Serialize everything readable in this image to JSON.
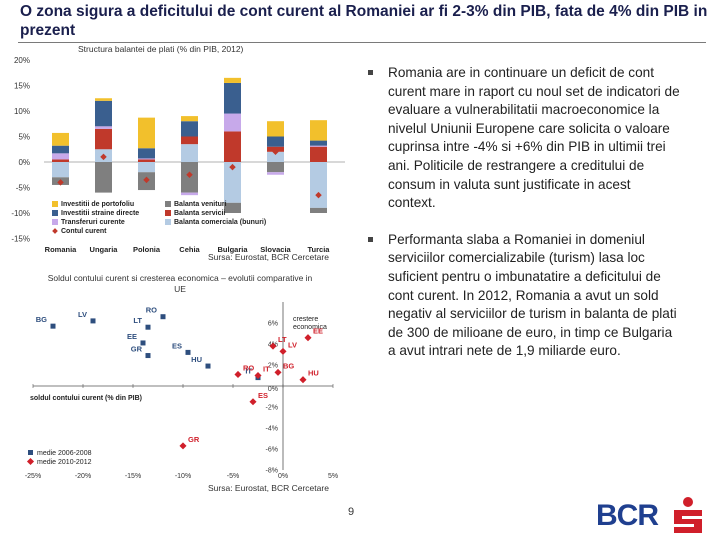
{
  "slide_title": "O zona sigura a deficitului de cont curent al Romaniei ar fi 2-3% din PIB, fata de 4% din PIB in prezent",
  "bullets": [
    "Romania are in continuare un deficit de cont curent mare in raport cu noul set de indicatori de evaluare a vulnerabilitatii macroeconomice la nivelul Uniunii Europene care solicita o valoare cuprinsa intre -4% si +6% din PIB in ultimii trei ani. Politicile de restrangere a creditului de consum in valuta sunt justificate in acest context.",
    "Performanta slaba a Romaniei in domeniul serviciilor comercializabile (turism) lasa loc suficient pentru o imbunatatire a deficitului de cont curent. In 2012, Romania a avut un sold negativ al serviciilor de turism in balanta de plati de 300 de milioane de euro, in timp ce Bulgaria a avut intrari nete de 1,9 miliarde euro."
  ],
  "page_number": "9",
  "logo_text": "BCR",
  "chart_data": [
    {
      "type": "bar",
      "stacked": true,
      "title": "Structura balantei de plati  (% din PIB, 2012)",
      "source": "Sursa: Eurostat, BCR Cercetare",
      "categories": [
        "Romania",
        "Ungaria",
        "Polonia",
        "Cehia",
        "Bulgaria",
        "Slovacia",
        "Turcia"
      ],
      "yticks": [
        "20%",
        "15%",
        "10%",
        "5%",
        "0%",
        "-5%",
        "-10%",
        "-15%"
      ],
      "ylim": [
        -15,
        20
      ],
      "series": [
        {
          "name": "Balanta comerciala (bunuri)",
          "color": "#b4cbe3",
          "values": [
            -3,
            2.5,
            -2,
            3.5,
            -8,
            2,
            -9
          ]
        },
        {
          "name": "Balanta servicii",
          "color": "#c0392b",
          "values": [
            0.5,
            4,
            0.5,
            1.5,
            6,
            1,
            3
          ]
        },
        {
          "name": "Balanta venituri",
          "color": "#7f7f7f",
          "values": [
            -1.5,
            -6,
            -3.5,
            -6,
            -2,
            -2,
            -1
          ]
        },
        {
          "name": "Transferuri curente",
          "color": "#c7a9ea",
          "values": [
            1.2,
            0.5,
            0.2,
            -0.5,
            3.5,
            -0.5,
            0.2
          ]
        },
        {
          "name": "Investitii straine directe",
          "color": "#3a5f8f",
          "values": [
            1.5,
            5,
            2,
            3,
            6,
            2,
            1
          ]
        },
        {
          "name": "Investitii de portofoliu",
          "color": "#f2c02c",
          "values": [
            2.5,
            0.5,
            6,
            1,
            1,
            3,
            4
          ]
        }
      ],
      "contul_curent": {
        "name": "Contul curent",
        "color": "#c0392b",
        "values": [
          -4,
          1,
          -3.5,
          -2.5,
          -1,
          2,
          -6.5
        ]
      },
      "legend": [
        "Investitii de portofoliu",
        "Investitii straine directe",
        "Transferuri curente",
        "Balanta venituri",
        "Balanta servicii",
        "Balanta comerciala (bunuri)",
        "Contul curent"
      ]
    },
    {
      "type": "scatter",
      "title": "Soldul contului curent si cresterea economica – evolutii comparative in UE",
      "source": "Sursa: Eurostat, BCR Cercetare",
      "xlabel": "soldul contului curent (% din PIB)",
      "ylabel": "crestere economica",
      "xlim": [
        -25,
        5
      ],
      "ylim": [
        -8,
        8
      ],
      "xticks": [
        -25,
        -20,
        -15,
        -10,
        -5,
        0,
        5
      ],
      "xtick_labels": [
        "-25%",
        "-20%",
        "-15%",
        "-10%",
        "-5%",
        "0%",
        "5%"
      ],
      "yticks": [
        6,
        4,
        2,
        0,
        -2,
        -4,
        -6,
        -8
      ],
      "ytick_labels": [
        "6%",
        "4%",
        "2%",
        "0%",
        "-2%",
        "-4%",
        "-6%",
        "-8%"
      ],
      "series": [
        {
          "name": "medie 2006-2008",
          "marker": "square",
          "color": "#2e4e7e",
          "points": [
            {
              "label": "BG",
              "x": -23,
              "y": 5.7
            },
            {
              "label": "LV",
              "x": -19,
              "y": 6.2
            },
            {
              "label": "RO",
              "x": -12,
              "y": 6.6
            },
            {
              "label": "LT",
              "x": -13.5,
              "y": 5.6
            },
            {
              "label": "EE",
              "x": -14,
              "y": 4.1
            },
            {
              "label": "GR",
              "x": -13.5,
              "y": 2.9
            },
            {
              "label": "ES",
              "x": -9.5,
              "y": 3.2
            },
            {
              "label": "HU",
              "x": -7.5,
              "y": 1.9
            },
            {
              "label": "IT",
              "x": -2.5,
              "y": 0.8
            }
          ]
        },
        {
          "name": "medie 2010-2012",
          "marker": "diamond",
          "color": "#d01f2a",
          "points": [
            {
              "label": "EE",
              "x": 2.5,
              "y": 4.6
            },
            {
              "label": "LT",
              "x": -1,
              "y": 3.8
            },
            {
              "label": "LV",
              "x": 0,
              "y": 3.3
            },
            {
              "label": "BG",
              "x": -0.5,
              "y": 1.3
            },
            {
              "label": "HU",
              "x": 2,
              "y": 0.6
            },
            {
              "label": "RO",
              "x": -4.5,
              "y": 1.1
            },
            {
              "label": "IT",
              "x": -2.5,
              "y": 1
            },
            {
              "label": "ES",
              "x": -3,
              "y": -1.5
            },
            {
              "label": "GR",
              "x": -10,
              "y": -5.7
            }
          ]
        }
      ]
    }
  ]
}
